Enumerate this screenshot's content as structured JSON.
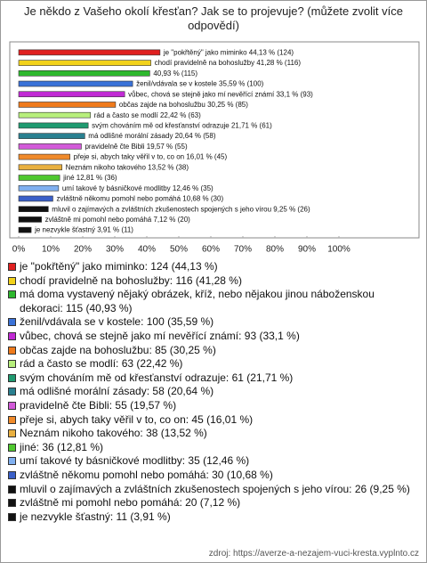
{
  "chart_data": {
    "type": "bar",
    "orientation": "horizontal",
    "title": "Je někdo z Vašeho okolí křesťan? Jak se to projevuje? (můžete zvolit více odpovědí)",
    "categories": [
      "je \"pokřtěný\" jako miminko",
      "chodí pravidelně na bohoslužby",
      "má doma vystavený nějaký obrázek, kříž, nebo nějakou jinou náboženskou dekoraci",
      "ženil/vdávala se v kostele",
      "vůbec, chová se stejně jako mí nevěřící známí",
      "občas zajde na bohoslužbu",
      "rád a často se modlí",
      "svým chováním mě od křesťanství odrazuje",
      "má odlišné morální zásady",
      "pravidelně čte Bibli",
      "přeje si, abych taky věřil v to, co on",
      "Neznám nikoho takového",
      "jiné",
      "umí takové ty básničkové modlitby",
      "zvláštně někomu pomohl nebo pomáhá",
      "mluvil o zajímavých a zvláštních zkušenostech spojených s jeho vírou",
      "zvláštně mi pomohl nebo pomáhá",
      "je nezvykle šťastný"
    ],
    "values": [
      44.13,
      41.28,
      40.93,
      35.59,
      33.1,
      30.25,
      22.42,
      21.71,
      20.64,
      19.57,
      16.01,
      13.52,
      12.81,
      12.46,
      10.68,
      9.25,
      7.12,
      3.91
    ],
    "value_labels": [
      "je \"pokřtěný\" jako miminko 44,13 % (124)",
      "chodí pravidelně na bohoslužby 41,28 % (116)",
      "40,93 % (115)",
      "ženil/vdávala se v kostele 35,59 % (100)",
      "vůbec, chová se stejně jako mí nevěřící známí 33,1 % (93)",
      "občas zajde na bohoslužbu 30,25 % (85)",
      "rád a často se modlí 22,42 % (63)",
      "svým chováním mě od křesťanství odrazuje 21,71 % (61)",
      "má odlišné morální zásady 20,64 % (58)",
      "pravidelně čte Bibli 19,57 % (55)",
      "přeje si, abych taky věřil v to, co on 16,01 % (45)",
      "Neznám nikoho takového 13,52 % (38)",
      "jiné 12,81 % (36)",
      "umí takové ty básničkové modlitby 12,46 % (35)",
      "zvláštně někomu pomohl nebo pomáhá 10,68 % (30)",
      "mluvil o zajímavých a zvláštních zkušenostech spojených s jeho vírou 9,25 % (26)",
      "zvláštně mi pomohl nebo pomáhá 7,12 % (20)",
      "je nezvykle šťastný 3,91 % (11)"
    ],
    "legend_labels": [
      "je \"pokřtěný\" jako miminko: 124 (44,13 %)",
      "chodí pravidelně na bohoslužby: 116 (41,28 %)",
      "má doma vystavený nějaký obrázek, kříž, nebo nějakou jinou náboženskou dekoraci: 115 (40,93 %)",
      "ženil/vdávala se v kostele: 100 (35,59 %)",
      "vůbec, chová se stejně jako mí nevěřící známí: 93 (33,1 %)",
      "občas zajde na bohoslužbu: 85 (30,25 %)",
      "rád a často se modlí: 63 (22,42 %)",
      "svým chováním mě od křesťanství odrazuje: 61 (21,71 %)",
      "má odlišné morální zásady: 58 (20,64 %)",
      "pravidelně čte Bibli: 55 (19,57 %)",
      "přeje si, abych taky věřil v to, co on: 45 (16,01 %)",
      "Neznám nikoho takového: 38 (13,52 %)",
      "jiné: 36 (12,81 %)",
      "umí takové ty básničkové modlitby: 35 (12,46 %)",
      "zvláštně někomu pomohl nebo pomáhá: 30 (10,68 %)",
      "mluvil o zajímavých a zvláštních zkušenostech spojených s jeho vírou: 26 (9,25 %)",
      "zvláštně mi pomohl nebo pomáhá: 20 (7,12 %)",
      "je nezvykle šťastný: 11 (3,91 %)"
    ],
    "colors": [
      "#e02020",
      "#f2d21a",
      "#2eb82e",
      "#3a72d8",
      "#c12ad4",
      "#ef7a1b",
      "#b7ef7c",
      "#1f9a70",
      "#2a8090",
      "#d25ad9",
      "#f08a2a",
      "#e9b040",
      "#4fc82f",
      "#80b0f0",
      "#3a5fc8",
      "#111111",
      "#111111",
      "#111111"
    ],
    "xlim": [
      0,
      100
    ],
    "xticks": [
      {
        "value": 0,
        "label": "0%"
      },
      {
        "value": 10,
        "label": "10%"
      },
      {
        "value": 20,
        "label": "20%"
      },
      {
        "value": 30,
        "label": "30%"
      },
      {
        "value": 40,
        "label": "40%"
      },
      {
        "value": 50,
        "label": "50%"
      },
      {
        "value": 60,
        "label": "60%"
      },
      {
        "value": 70,
        "label": "70%"
      },
      {
        "value": 80,
        "label": "80%"
      },
      {
        "value": 90,
        "label": "90%"
      },
      {
        "value": 100,
        "label": "100%"
      }
    ],
    "grid": false,
    "source": "zdroj: https://averze-a-nezajem-vuci-kresta.vyplnto.cz"
  }
}
